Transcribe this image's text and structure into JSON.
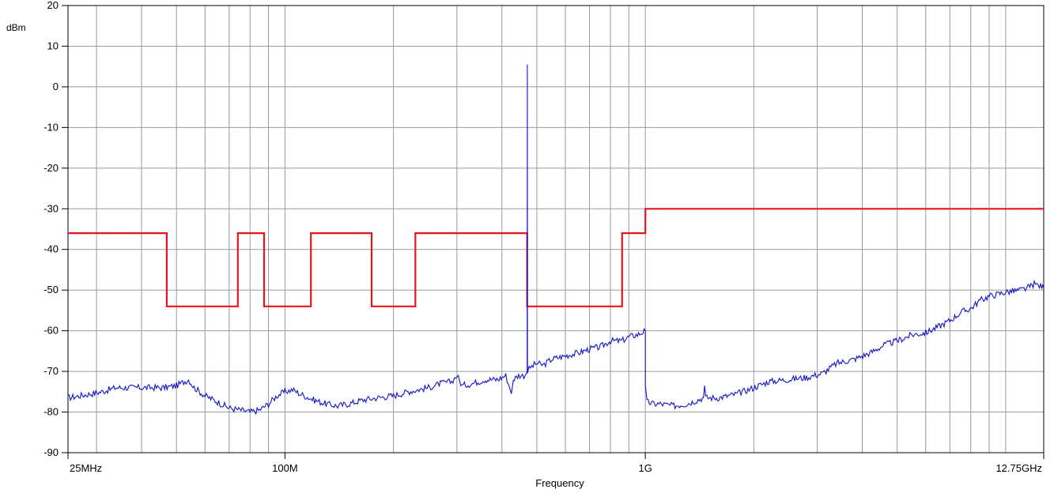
{
  "chart_data": {
    "type": "line",
    "title": "",
    "xlabel": "Frequency",
    "ylabel": "dBm",
    "x_scale": "log",
    "xlim_hz": [
      25000000,
      12750000000
    ],
    "ylim": [
      -90,
      20
    ],
    "grid": true,
    "y_ticks": [
      20,
      10,
      0,
      -10,
      -20,
      -30,
      -40,
      -50,
      -60,
      -70,
      -80,
      -90
    ],
    "x_tick_labels": [
      {
        "hz": 25000000,
        "label": "25MHz"
      },
      {
        "hz": 100000000,
        "label": "100M"
      },
      {
        "hz": 1000000000,
        "label": "1G"
      },
      {
        "hz": 12750000000,
        "label": "12.75GHz"
      }
    ],
    "x_gridlines_hz": [
      30000000,
      40000000,
      50000000,
      60000000,
      70000000,
      80000000,
      90000000,
      100000000,
      200000000,
      300000000,
      400000000,
      500000000,
      600000000,
      700000000,
      800000000,
      900000000,
      1000000000,
      2000000000,
      3000000000,
      4000000000,
      5000000000,
      6000000000,
      7000000000,
      8000000000,
      9000000000,
      10000000000
    ],
    "series": [
      {
        "color": "#e8141b",
        "style": "step",
        "points": [
          [
            25000000,
            -36
          ],
          [
            47000000,
            -36
          ],
          [
            47000000,
            -54
          ],
          [
            74000000,
            -54
          ],
          [
            74000000,
            -36
          ],
          [
            87500000,
            -36
          ],
          [
            87500000,
            -54
          ],
          [
            118000000,
            -54
          ],
          [
            118000000,
            -36
          ],
          [
            174000000,
            -36
          ],
          [
            174000000,
            -54
          ],
          [
            230000000,
            -54
          ],
          [
            230000000,
            -36
          ],
          [
            470000000,
            -36
          ],
          [
            470000000,
            -54
          ],
          [
            862000000,
            -54
          ],
          [
            862000000,
            -36
          ],
          [
            1000000000,
            -36
          ],
          [
            1000000000,
            -30
          ],
          [
            12750000000,
            -30
          ]
        ]
      },
      {
        "color": "#1414c8",
        "style": "trace",
        "points": [
          [
            25000000,
            -76.5
          ],
          [
            27000000,
            -76
          ],
          [
            29000000,
            -75.5
          ],
          [
            31000000,
            -75
          ],
          [
            34000000,
            -74
          ],
          [
            38000000,
            -74
          ],
          [
            42000000,
            -74
          ],
          [
            46000000,
            -74
          ],
          [
            50000000,
            -73.5
          ],
          [
            54000000,
            -72
          ],
          [
            56000000,
            -74
          ],
          [
            60000000,
            -76
          ],
          [
            65000000,
            -77.5
          ],
          [
            70000000,
            -79
          ],
          [
            75000000,
            -79.5
          ],
          [
            80000000,
            -80
          ],
          [
            85000000,
            -79.5
          ],
          [
            90000000,
            -78
          ],
          [
            95000000,
            -76
          ],
          [
            100000000,
            -75
          ],
          [
            105000000,
            -74.5
          ],
          [
            110000000,
            -75.5
          ],
          [
            120000000,
            -77
          ],
          [
            130000000,
            -78
          ],
          [
            140000000,
            -78.5
          ],
          [
            150000000,
            -78
          ],
          [
            165000000,
            -77
          ],
          [
            180000000,
            -76.5
          ],
          [
            200000000,
            -76
          ],
          [
            220000000,
            -75
          ],
          [
            250000000,
            -74
          ],
          [
            270000000,
            -73
          ],
          [
            290000000,
            -72.5
          ],
          [
            300000000,
            -71
          ],
          [
            310000000,
            -73.5
          ],
          [
            330000000,
            -73
          ],
          [
            360000000,
            -72
          ],
          [
            390000000,
            -72
          ],
          [
            410000000,
            -71
          ],
          [
            420000000,
            -74
          ],
          [
            425000000,
            -75.5
          ],
          [
            430000000,
            -72
          ],
          [
            445000000,
            -71
          ],
          [
            460000000,
            -71
          ],
          [
            468000000,
            -70.5
          ],
          [
            470000000,
            -70
          ],
          [
            470500000,
            5.5
          ],
          [
            471000000,
            -70
          ],
          [
            480000000,
            -69
          ],
          [
            500000000,
            -68
          ],
          [
            520000000,
            -68.5
          ],
          [
            550000000,
            -67
          ],
          [
            580000000,
            -66.5
          ],
          [
            610000000,
            -66
          ],
          [
            650000000,
            -65.5
          ],
          [
            700000000,
            -64.5
          ],
          [
            750000000,
            -64
          ],
          [
            800000000,
            -62.5
          ],
          [
            860000000,
            -62.5
          ],
          [
            900000000,
            -61.5
          ],
          [
            950000000,
            -61
          ],
          [
            1000000000,
            -60
          ],
          [
            1000000000,
            -73.5
          ],
          [
            1010000000,
            -77.5
          ],
          [
            1050000000,
            -78
          ],
          [
            1100000000,
            -78
          ],
          [
            1200000000,
            -78.5
          ],
          [
            1300000000,
            -78
          ],
          [
            1400000000,
            -77
          ],
          [
            1450000000,
            -76.5
          ],
          [
            1460000000,
            -73.5
          ],
          [
            1470000000,
            -76.5
          ],
          [
            1600000000,
            -76.5
          ],
          [
            1800000000,
            -75.5
          ],
          [
            2000000000,
            -74
          ],
          [
            2200000000,
            -72.5
          ],
          [
            2500000000,
            -72
          ],
          [
            2800000000,
            -71.5
          ],
          [
            3100000000,
            -70.5
          ],
          [
            3400000000,
            -68
          ],
          [
            3800000000,
            -67
          ],
          [
            4200000000,
            -65.5
          ],
          [
            4600000000,
            -63.5
          ],
          [
            5000000000,
            -62.5
          ],
          [
            5500000000,
            -61
          ],
          [
            6000000000,
            -60.5
          ],
          [
            6500000000,
            -59
          ],
          [
            7000000000,
            -57.5
          ],
          [
            7500000000,
            -55.5
          ],
          [
            8000000000,
            -54.5
          ],
          [
            8500000000,
            -52.5
          ],
          [
            9000000000,
            -51.5
          ],
          [
            9500000000,
            -51
          ],
          [
            10000000000,
            -50.5
          ],
          [
            11000000000,
            -50
          ],
          [
            11500000000,
            -49.5
          ],
          [
            12000000000,
            -48.5
          ],
          [
            12500000000,
            -49
          ],
          [
            12750000000,
            -49.5
          ]
        ]
      }
    ]
  }
}
